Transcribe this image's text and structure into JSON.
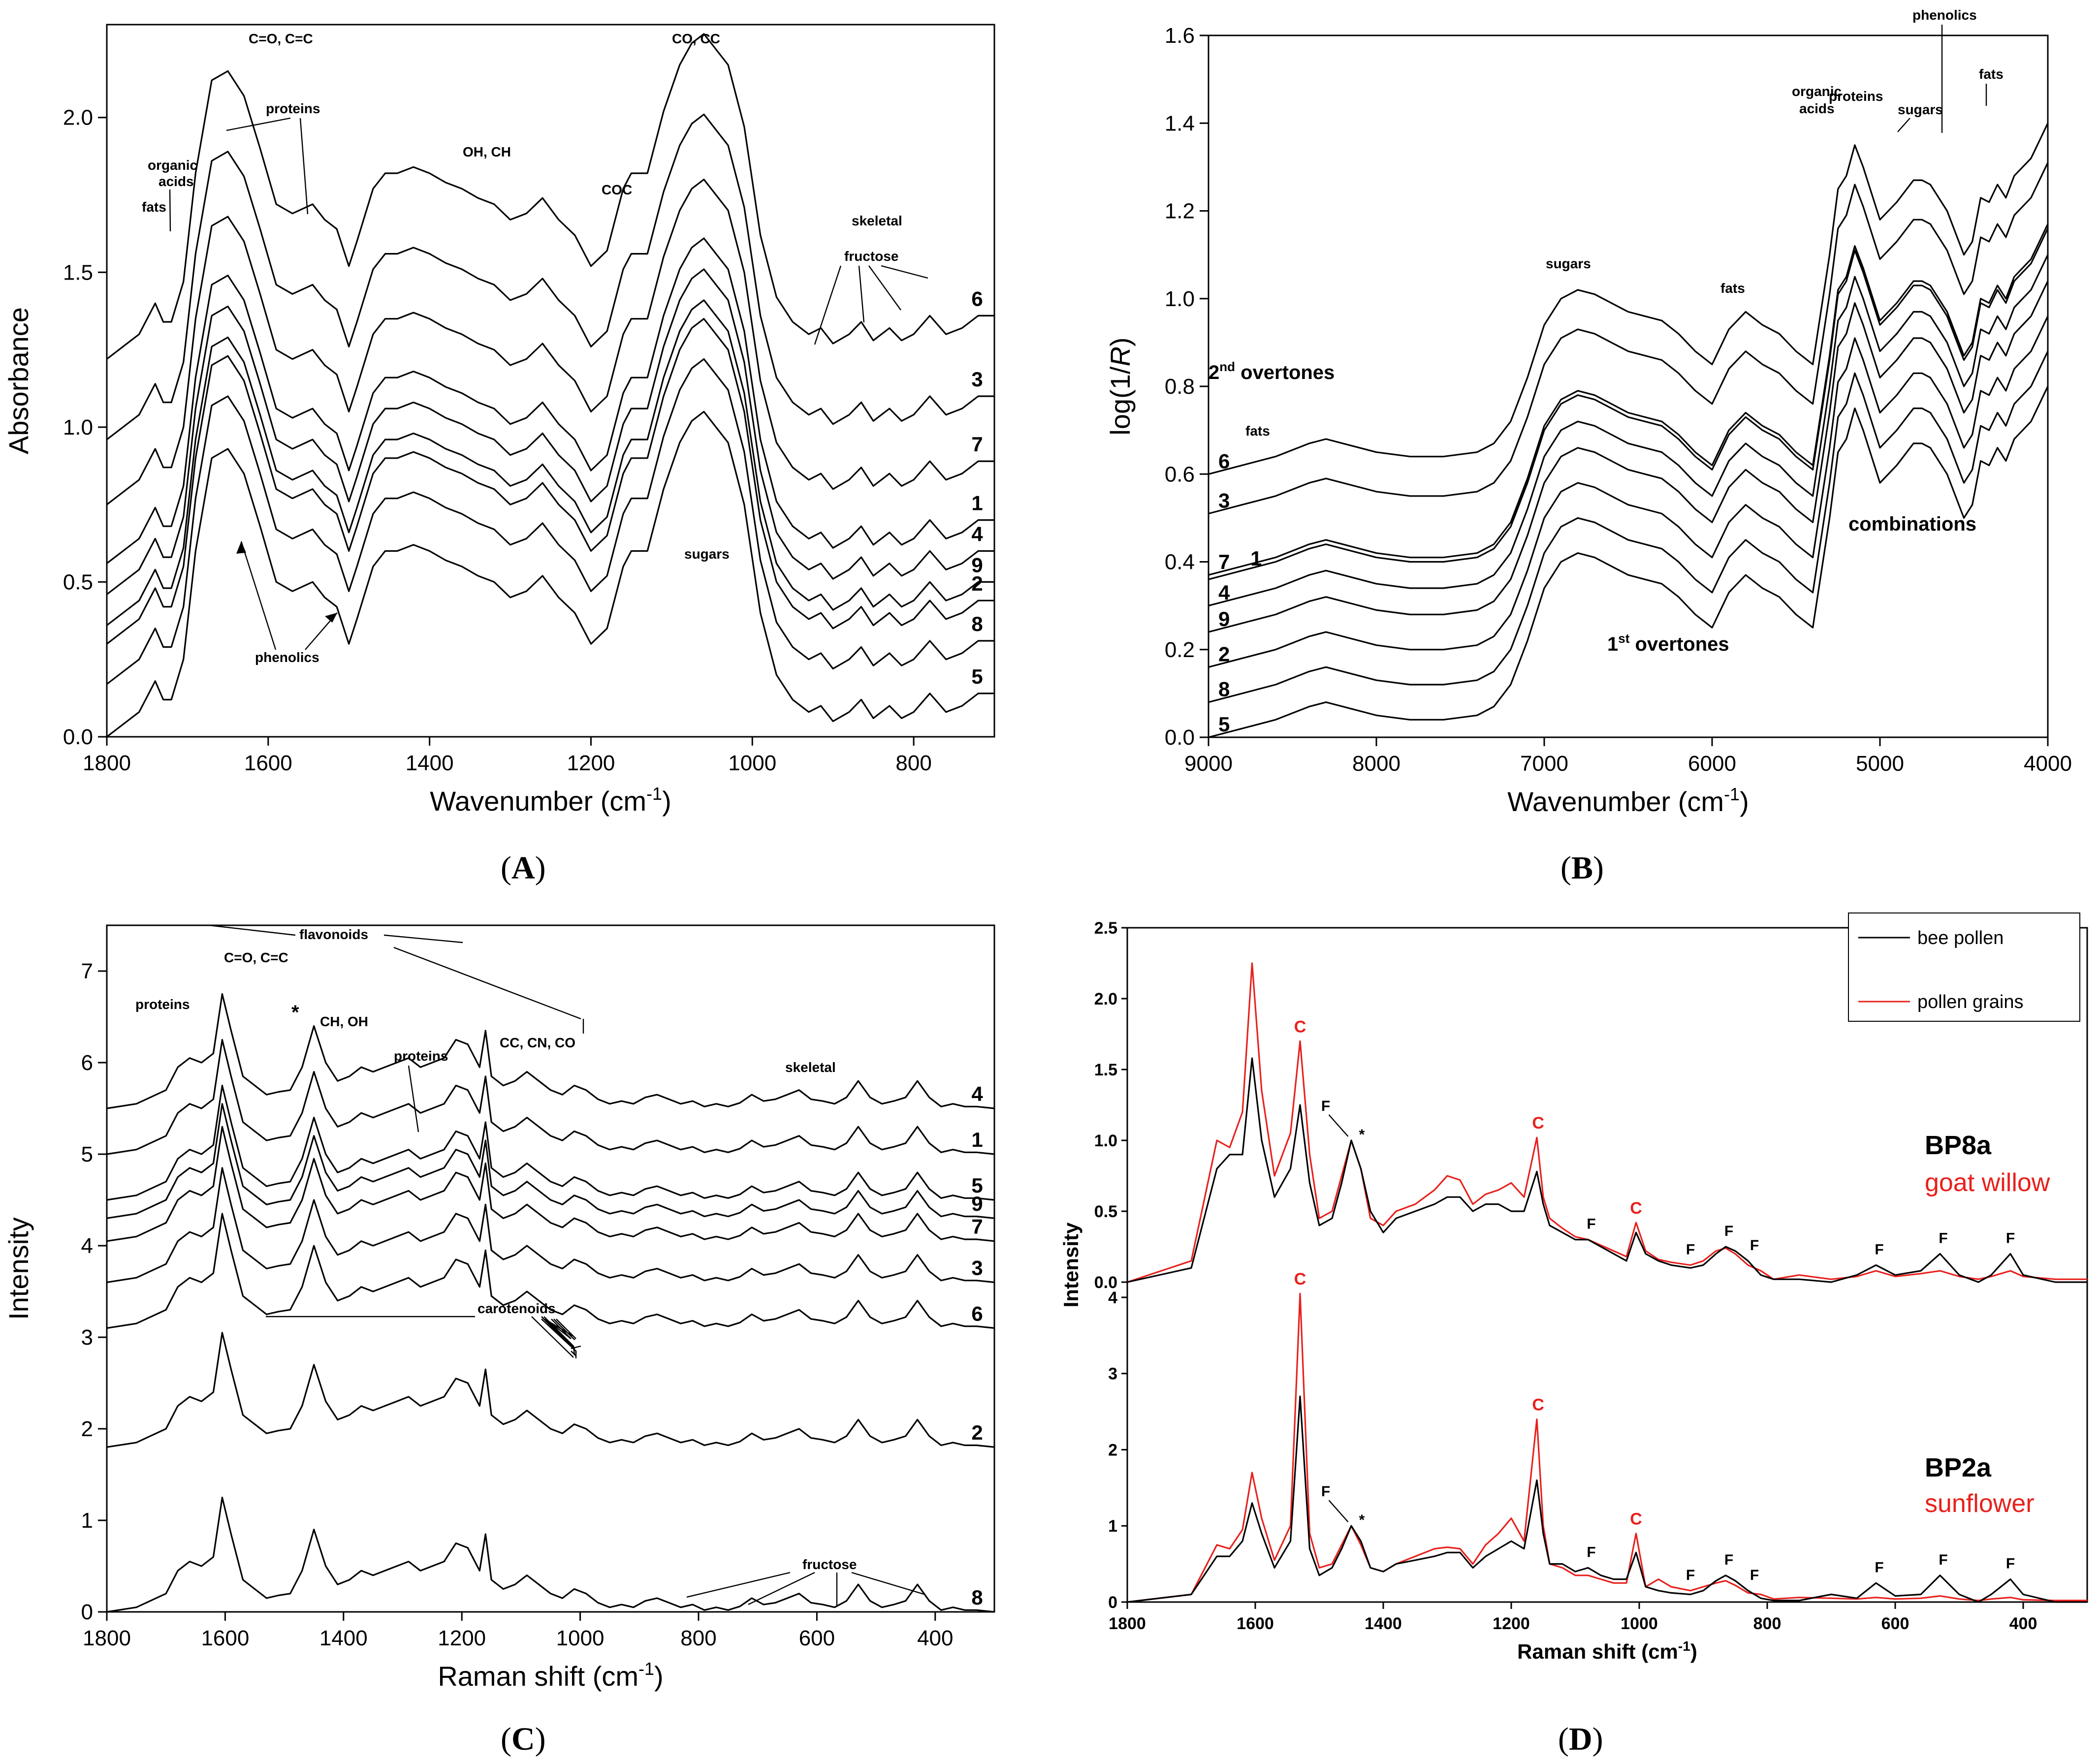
{
  "chart_data": [
    {
      "id": "A",
      "type": "line",
      "panel_label": "A",
      "xlabel": "Wavenumber (cm⁻¹)",
      "ylabel": "Absorbance",
      "xlim": [
        1800,
        700
      ],
      "ylim": [
        0,
        2.3
      ],
      "xticks": [
        1800,
        1600,
        1400,
        1200,
        1000,
        800
      ],
      "yticks": [
        "0.0",
        "0.5",
        "1.0",
        "1.5",
        "2.0"
      ],
      "spectrum": {
        "x": [
          1800,
          1760,
          1740,
          1730,
          1720,
          1705,
          1690,
          1670,
          1650,
          1630,
          1610,
          1590,
          1570,
          1545,
          1530,
          1515,
          1500,
          1490,
          1470,
          1455,
          1440,
          1420,
          1400,
          1380,
          1360,
          1340,
          1320,
          1300,
          1280,
          1260,
          1240,
          1220,
          1200,
          1180,
          1160,
          1150,
          1130,
          1110,
          1090,
          1075,
          1060,
          1045,
          1030,
          1010,
          990,
          970,
          950,
          930,
          915,
          900,
          880,
          865,
          850,
          830,
          815,
          800,
          780,
          760,
          740,
          720,
          700
        ],
        "y": [
          0.0,
          0.08,
          0.18,
          0.12,
          0.12,
          0.25,
          0.6,
          0.9,
          0.93,
          0.85,
          0.68,
          0.5,
          0.47,
          0.5,
          0.45,
          0.42,
          0.3,
          0.38,
          0.55,
          0.6,
          0.6,
          0.62,
          0.6,
          0.57,
          0.55,
          0.52,
          0.5,
          0.45,
          0.47,
          0.52,
          0.45,
          0.4,
          0.3,
          0.35,
          0.55,
          0.6,
          0.6,
          0.8,
          0.95,
          1.02,
          1.05,
          1.0,
          0.95,
          0.75,
          0.4,
          0.2,
          0.12,
          0.08,
          0.1,
          0.05,
          0.08,
          0.12,
          0.06,
          0.1,
          0.06,
          0.08,
          0.14,
          0.08,
          0.1,
          0.14,
          0.14
        ]
      },
      "series": [
        {
          "name": "6",
          "offset": 1.22
        },
        {
          "name": "3",
          "offset": 0.96
        },
        {
          "name": "7",
          "offset": 0.75
        },
        {
          "name": "1",
          "offset": 0.56
        },
        {
          "name": "4",
          "offset": 0.46
        },
        {
          "name": "9",
          "offset": 0.36
        },
        {
          "name": "2",
          "offset": 0.3
        },
        {
          "name": "8",
          "offset": 0.17
        },
        {
          "name": "5",
          "offset": 0.0
        }
      ],
      "curve_labels": [
        "6",
        "3",
        "7",
        "1",
        "4",
        "9",
        "2",
        "8",
        "5"
      ],
      "annotations": [
        "C=O, C=C",
        "CO, CC",
        "proteins",
        "organic",
        "acids",
        "fats",
        "OH, CH",
        "COC",
        "skeletal",
        "fructose",
        "sugars",
        "phenolics"
      ]
    },
    {
      "id": "B",
      "type": "line",
      "panel_label": "B",
      "xlabel": "Wavenumber (cm⁻¹)",
      "ylabel": "log(1/R)",
      "xlim": [
        9000,
        4000
      ],
      "ylim": [
        0,
        1.6
      ],
      "xticks": [
        9000,
        8000,
        7000,
        6000,
        5000,
        4000
      ],
      "yticks": [
        "0.0",
        "0.2",
        "0.4",
        "0.6",
        "0.8",
        "1.0",
        "1.2",
        "1.4",
        "1.6"
      ],
      "spectrum": {
        "x": [
          9000,
          8800,
          8600,
          8400,
          8300,
          8200,
          8000,
          7800,
          7600,
          7400,
          7300,
          7200,
          7100,
          7000,
          6900,
          6800,
          6700,
          6600,
          6500,
          6400,
          6300,
          6200,
          6100,
          6000,
          5900,
          5800,
          5700,
          5600,
          5500,
          5400,
          5300,
          5250,
          5200,
          5150,
          5100,
          5000,
          4900,
          4800,
          4750,
          4700,
          4600,
          4500,
          4450,
          4400,
          4350,
          4300,
          4250,
          4200,
          4100,
          4000
        ],
        "y": [
          0.0,
          0.02,
          0.04,
          0.07,
          0.08,
          0.07,
          0.05,
          0.04,
          0.04,
          0.05,
          0.07,
          0.12,
          0.22,
          0.34,
          0.4,
          0.42,
          0.41,
          0.39,
          0.37,
          0.36,
          0.35,
          0.32,
          0.28,
          0.25,
          0.33,
          0.37,
          0.34,
          0.32,
          0.28,
          0.25,
          0.5,
          0.65,
          0.68,
          0.75,
          0.7,
          0.58,
          0.62,
          0.67,
          0.67,
          0.66,
          0.6,
          0.5,
          0.53,
          0.63,
          0.62,
          0.66,
          0.63,
          0.68,
          0.72,
          0.8
        ]
      },
      "series": [
        {
          "name": "6",
          "offset": 0.6
        },
        {
          "name": "3",
          "offset": 0.51
        },
        {
          "name": "7",
          "offset": 0.37
        },
        {
          "name": "1",
          "offset": 0.36
        },
        {
          "name": "4",
          "offset": 0.3
        },
        {
          "name": "9",
          "offset": 0.24
        },
        {
          "name": "2",
          "offset": 0.16
        },
        {
          "name": "8",
          "offset": 0.08
        },
        {
          "name": "5",
          "offset": 0.0
        }
      ],
      "curve_labels": [
        "6",
        "3",
        "7",
        "1",
        "4",
        "9",
        "2",
        "8",
        "5"
      ],
      "annotations": [
        "phenolics",
        "proteins",
        "sugars",
        "organic",
        "acids",
        "fats",
        "combinations",
        "1st overtones",
        "2nd overtones"
      ]
    },
    {
      "id": "C",
      "type": "line",
      "panel_label": "C",
      "xlabel": "Raman shift (cm⁻¹)",
      "ylabel": "Intensity",
      "xlim": [
        1800,
        300
      ],
      "ylim": [
        0,
        7.5
      ],
      "xticks": [
        1800,
        1600,
        1400,
        1200,
        1000,
        800,
        600,
        400
      ],
      "yticks": [
        "0",
        "1",
        "2",
        "3",
        "4",
        "5",
        "6",
        "7"
      ],
      "spectrum": {
        "x": [
          1800,
          1750,
          1700,
          1680,
          1660,
          1640,
          1620,
          1605,
          1590,
          1570,
          1550,
          1530,
          1510,
          1490,
          1470,
          1450,
          1430,
          1410,
          1390,
          1370,
          1350,
          1330,
          1310,
          1290,
          1270,
          1250,
          1230,
          1210,
          1190,
          1170,
          1160,
          1150,
          1130,
          1110,
          1090,
          1070,
          1050,
          1030,
          1010,
          990,
          970,
          950,
          930,
          910,
          890,
          870,
          850,
          830,
          810,
          790,
          770,
          750,
          730,
          710,
          690,
          670,
          650,
          630,
          610,
          590,
          570,
          550,
          530,
          510,
          490,
          470,
          450,
          430,
          410,
          390,
          370,
          350,
          330,
          300
        ],
        "y": [
          0.0,
          0.05,
          0.2,
          0.45,
          0.55,
          0.5,
          0.6,
          1.25,
          0.85,
          0.35,
          0.25,
          0.15,
          0.18,
          0.2,
          0.45,
          0.9,
          0.5,
          0.3,
          0.35,
          0.45,
          0.4,
          0.45,
          0.5,
          0.55,
          0.45,
          0.5,
          0.55,
          0.75,
          0.7,
          0.45,
          0.85,
          0.35,
          0.25,
          0.3,
          0.4,
          0.3,
          0.2,
          0.15,
          0.25,
          0.2,
          0.1,
          0.05,
          0.08,
          0.05,
          0.12,
          0.15,
          0.1,
          0.05,
          0.08,
          0.02,
          0.05,
          0.02,
          0.06,
          0.15,
          0.08,
          0.1,
          0.15,
          0.2,
          0.1,
          0.08,
          0.05,
          0.12,
          0.3,
          0.12,
          0.05,
          0.08,
          0.12,
          0.3,
          0.12,
          0.02,
          0.05,
          0.02,
          0.02,
          0.0
        ]
      },
      "series": [
        {
          "name": "4",
          "offset": 5.5
        },
        {
          "name": "1",
          "offset": 5.0
        },
        {
          "name": "5",
          "offset": 4.5
        },
        {
          "name": "9",
          "offset": 4.3
        },
        {
          "name": "7",
          "offset": 4.05
        },
        {
          "name": "3",
          "offset": 3.6
        },
        {
          "name": "6",
          "offset": 3.1
        },
        {
          "name": "2",
          "offset": 1.8
        },
        {
          "name": "8",
          "offset": 0.0
        }
      ],
      "curve_labels": [
        "4",
        "1",
        "5",
        "9",
        "7",
        "3",
        "6",
        "2",
        "8"
      ],
      "annotations": [
        "flavonoids",
        "C=O, C=C",
        "proteins",
        "*",
        "CH, OH",
        "proteins",
        "CC, CN, CO",
        "skeletal",
        "carotenoids",
        "fructose"
      ]
    },
    {
      "id": "D",
      "type": "line",
      "panel_label": "D",
      "xlabel": "Raman shift (cm⁻¹)",
      "ylabel": "Intensity",
      "xlim": [
        1800,
        300
      ],
      "xticks": [
        1800,
        1600,
        1400,
        1200,
        1000,
        800,
        600,
        400
      ],
      "legend": [
        "bee pollen",
        "pollen grains"
      ],
      "legend_position": "top-right",
      "colors": {
        "bee_pollen": "#000000",
        "pollen_grains": "#e8201c"
      },
      "subplots": [
        {
          "sample": "BP8a",
          "species": "goat willow",
          "ylim": [
            0,
            2.5
          ],
          "yticks": [
            "0.0",
            "0.5",
            "1.0",
            "1.5",
            "2.0",
            "2.5"
          ],
          "x": [
            1800,
            1700,
            1660,
            1640,
            1620,
            1605,
            1590,
            1570,
            1545,
            1530,
            1515,
            1500,
            1480,
            1465,
            1450,
            1435,
            1420,
            1400,
            1380,
            1350,
            1320,
            1300,
            1280,
            1260,
            1240,
            1220,
            1200,
            1180,
            1160,
            1150,
            1140,
            1120,
            1100,
            1080,
            1060,
            1040,
            1020,
            1005,
            990,
            970,
            950,
            920,
            900,
            880,
            865,
            850,
            830,
            810,
            790,
            750,
            700,
            660,
            630,
            600,
            560,
            530,
            500,
            470,
            450,
            420,
            400,
            350,
            300
          ],
          "bee_pollen": [
            0.0,
            0.1,
            0.8,
            0.9,
            0.9,
            1.58,
            1.0,
            0.6,
            0.8,
            1.25,
            0.7,
            0.4,
            0.45,
            0.7,
            1.0,
            0.8,
            0.5,
            0.35,
            0.45,
            0.5,
            0.55,
            0.6,
            0.6,
            0.5,
            0.55,
            0.55,
            0.5,
            0.5,
            0.78,
            0.55,
            0.4,
            0.35,
            0.3,
            0.3,
            0.25,
            0.2,
            0.15,
            0.35,
            0.2,
            0.15,
            0.12,
            0.1,
            0.12,
            0.2,
            0.25,
            0.22,
            0.15,
            0.05,
            0.02,
            0.02,
            0.0,
            0.05,
            0.12,
            0.05,
            0.08,
            0.2,
            0.05,
            0.0,
            0.05,
            0.2,
            0.05,
            0.0,
            0.0
          ],
          "pollen_grains": [
            0.0,
            0.15,
            1.0,
            0.95,
            1.2,
            2.25,
            1.35,
            0.75,
            1.05,
            1.7,
            0.9,
            0.45,
            0.5,
            0.75,
            1.0,
            0.8,
            0.45,
            0.4,
            0.5,
            0.55,
            0.65,
            0.75,
            0.72,
            0.55,
            0.62,
            0.65,
            0.7,
            0.6,
            1.02,
            0.6,
            0.45,
            0.38,
            0.32,
            0.3,
            0.26,
            0.22,
            0.18,
            0.42,
            0.22,
            0.16,
            0.14,
            0.12,
            0.15,
            0.22,
            0.24,
            0.2,
            0.12,
            0.08,
            0.02,
            0.05,
            0.02,
            0.04,
            0.08,
            0.04,
            0.06,
            0.08,
            0.04,
            0.02,
            0.04,
            0.08,
            0.04,
            0.02,
            0.02
          ]
        },
        {
          "sample": "BP2a",
          "species": "sunflower",
          "ylim": [
            0,
            4.2
          ],
          "yticks": [
            "0",
            "1",
            "2",
            "3",
            "4"
          ],
          "x": [
            1800,
            1700,
            1660,
            1640,
            1620,
            1605,
            1590,
            1570,
            1545,
            1530,
            1515,
            1500,
            1480,
            1465,
            1450,
            1435,
            1420,
            1400,
            1380,
            1350,
            1320,
            1300,
            1280,
            1260,
            1240,
            1220,
            1200,
            1180,
            1160,
            1150,
            1140,
            1120,
            1100,
            1080,
            1060,
            1040,
            1020,
            1005,
            990,
            970,
            950,
            920,
            900,
            880,
            865,
            850,
            830,
            810,
            790,
            750,
            700,
            660,
            630,
            600,
            560,
            530,
            500,
            470,
            450,
            420,
            400,
            350,
            300
          ],
          "bee_pollen": [
            0.0,
            0.1,
            0.6,
            0.6,
            0.8,
            1.3,
            0.9,
            0.45,
            0.8,
            2.7,
            0.7,
            0.35,
            0.45,
            0.7,
            1.0,
            0.8,
            0.45,
            0.4,
            0.5,
            0.55,
            0.6,
            0.65,
            0.65,
            0.45,
            0.6,
            0.7,
            0.8,
            0.7,
            1.6,
            0.9,
            0.5,
            0.5,
            0.4,
            0.45,
            0.35,
            0.3,
            0.3,
            0.65,
            0.2,
            0.15,
            0.12,
            0.1,
            0.15,
            0.28,
            0.35,
            0.28,
            0.15,
            0.05,
            0.02,
            0.02,
            0.1,
            0.05,
            0.25,
            0.08,
            0.1,
            0.35,
            0.1,
            0.0,
            0.1,
            0.3,
            0.1,
            0.0,
            0.0
          ],
          "pollen_grains": [
            0.0,
            0.1,
            0.75,
            0.7,
            0.95,
            1.7,
            1.1,
            0.55,
            1.0,
            4.05,
            0.9,
            0.45,
            0.5,
            0.75,
            1.0,
            0.75,
            0.45,
            0.4,
            0.5,
            0.6,
            0.7,
            0.72,
            0.7,
            0.5,
            0.75,
            0.9,
            1.1,
            0.8,
            2.4,
            1.0,
            0.5,
            0.45,
            0.35,
            0.35,
            0.3,
            0.25,
            0.25,
            0.9,
            0.2,
            0.3,
            0.2,
            0.15,
            0.2,
            0.25,
            0.28,
            0.22,
            0.12,
            0.1,
            0.04,
            0.06,
            0.05,
            0.04,
            0.06,
            0.04,
            0.05,
            0.08,
            0.04,
            0.02,
            0.04,
            0.06,
            0.03,
            0.02,
            0.02
          ]
        }
      ],
      "peak_labels": {
        "carotenoid": "C",
        "flavonoid": "F",
        "asterisk": "*"
      }
    }
  ],
  "panel_labels": {
    "A": "(A)",
    "B": "(B)",
    "C": "(C)",
    "D": "(D)"
  },
  "text": {
    "a_ann": [
      "C=O, C=C",
      "CO, CC",
      "proteins",
      "organic",
      "acids",
      "fats",
      "OH, CH",
      "COC",
      "skeletal",
      "fructose",
      "sugars",
      "phenolics"
    ],
    "b_ann": [
      "phenolics",
      "proteins",
      "sugars",
      "organic",
      "acids",
      "fats",
      "sugars",
      "fats",
      "fats",
      "combinations",
      "1",
      "st",
      " overtones",
      "2",
      "nd",
      " overtones"
    ],
    "c_ann": [
      "flavonoids",
      "C=O, C=C",
      "proteins",
      "*",
      "CH, OH",
      "proteins",
      "CC, CN, CO",
      "skeletal",
      "carotenoids",
      "fructose"
    ],
    "b_ylabel": [
      "log(1/",
      "R",
      ")"
    ]
  }
}
